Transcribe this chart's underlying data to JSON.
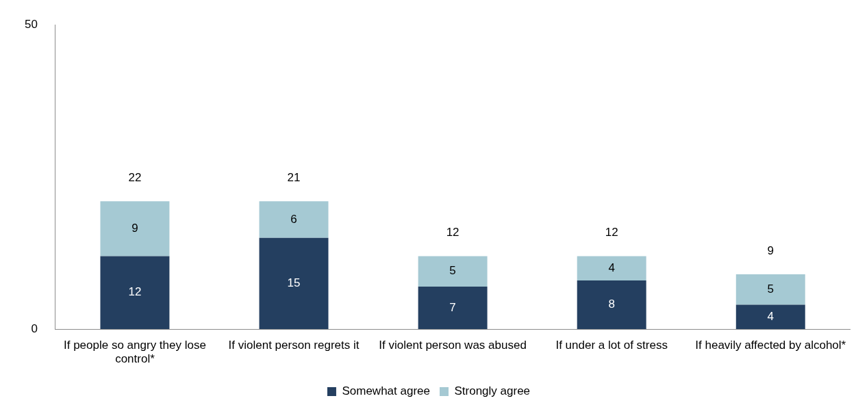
{
  "chart_data": {
    "type": "bar",
    "stacked": true,
    "categories": [
      "If people so angry they lose control*",
      "If violent person regrets it",
      "If violent person was abused",
      "If under a lot of stress",
      "If heavily affected by alcohol*"
    ],
    "series": [
      {
        "name": "Somewhat agree",
        "color": "#243f60",
        "values": [
          12,
          15,
          7,
          8,
          4
        ]
      },
      {
        "name": "Strongly agree",
        "color": "#a5c9d3",
        "values": [
          9,
          6,
          5,
          4,
          5
        ]
      }
    ],
    "totals": [
      "22",
      "21",
      "12",
      "12",
      "9"
    ],
    "ylim": [
      0,
      50
    ],
    "yticks": [
      0,
      50
    ],
    "grid": false,
    "legend": "bottom",
    "data_labels": true
  }
}
